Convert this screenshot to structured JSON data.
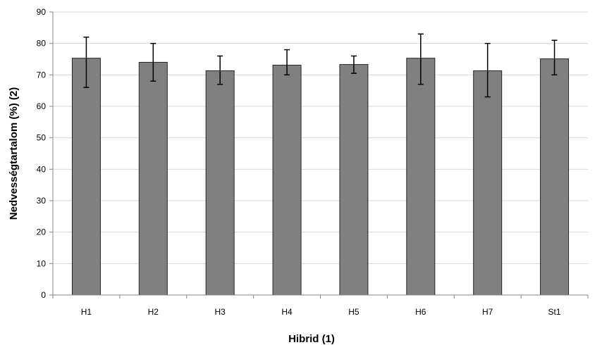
{
  "chart_data": {
    "type": "bar",
    "title": "",
    "xlabel": "Hibrid (1)",
    "ylabel": "Nedvességtartalom  (%) (2)",
    "categories": [
      "H1",
      "H2",
      "H3",
      "H4",
      "H5",
      "H6",
      "H7",
      "St1"
    ],
    "values": [
      75.3,
      74.0,
      71.3,
      73.1,
      73.3,
      75.3,
      71.3,
      75.1
    ],
    "error_low": [
      66,
      68,
      67,
      70,
      70.5,
      67,
      63,
      70
    ],
    "error_high": [
      82,
      80,
      76,
      78,
      76,
      83,
      80,
      81
    ],
    "ylim": [
      0,
      90
    ],
    "yticks": [
      "0",
      "10",
      "20",
      "30",
      "40",
      "50",
      "60",
      "70",
      "80",
      "90"
    ],
    "grid": true,
    "legend": "none",
    "colors": {
      "bar_fill": "#808080",
      "bar_stroke": "#262626",
      "grid": "#d9d9d9",
      "axis": "#868686",
      "error_bar": "#000000"
    }
  }
}
